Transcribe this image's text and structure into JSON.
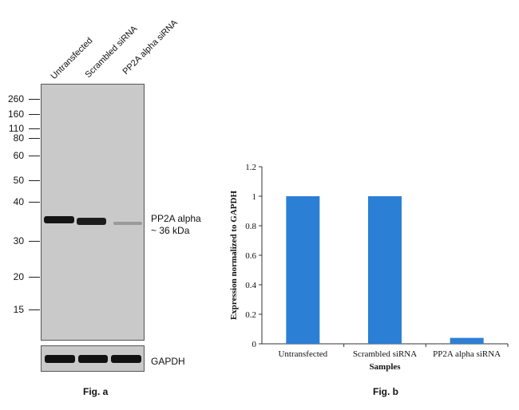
{
  "fig_a": {
    "lanes": [
      "Untransfected",
      "Scrambled siRNA",
      "PP2A alpha siRNA"
    ],
    "mw_markers": [
      "260",
      "160",
      "110",
      "80",
      "60",
      "50",
      "40",
      "30",
      "20",
      "15"
    ],
    "target_label_line1": "PP2A alpha",
    "target_label_line2": "~ 36 kDa",
    "loading_control": "GAPDH",
    "caption": "Fig. a"
  },
  "fig_b": {
    "caption": "Fig. b"
  },
  "chart_data": {
    "type": "bar",
    "categories": [
      "Untransfected",
      "Scrambled siRNA",
      "PP2A alpha siRNA"
    ],
    "values": [
      1.0,
      1.0,
      0.04
    ],
    "xlabel": "Samples",
    "ylabel": "Expression normalized to GAPDH",
    "ylim": [
      0,
      1.2
    ],
    "yticks": [
      "0",
      "0.2",
      "0.4",
      "0.6",
      "0.8",
      "1",
      "1.2"
    ],
    "bar_color": "#2b7fd4",
    "grid": false,
    "legend": "none"
  }
}
